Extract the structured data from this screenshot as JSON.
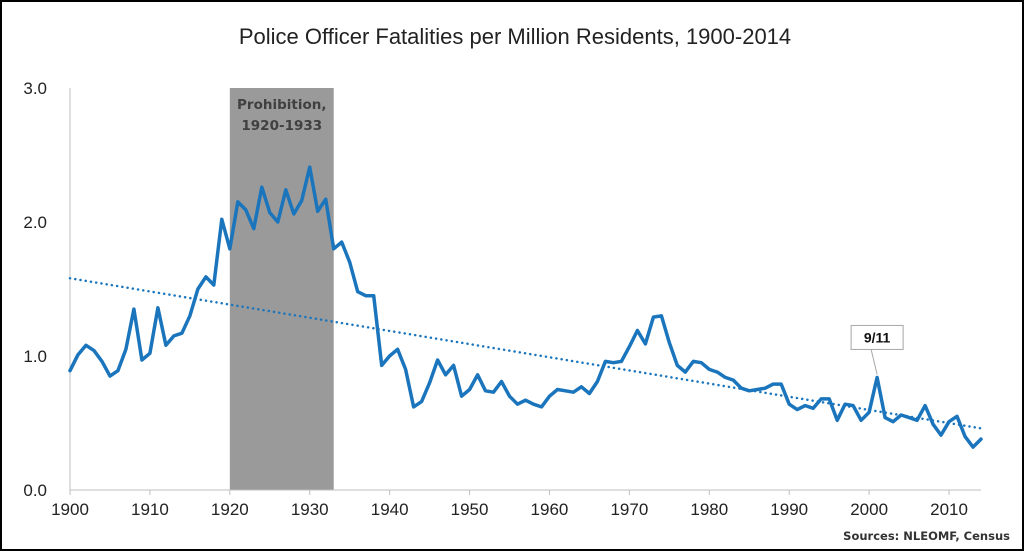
{
  "chart_data": {
    "type": "line",
    "title": "Police Officer Fatalities per Million Residents, 1900-2014",
    "xlabel": "",
    "ylabel": "",
    "xlim": [
      1900,
      2014
    ],
    "ylim": [
      0,
      3
    ],
    "x_ticks": [
      "1900",
      "1910",
      "1920",
      "1930",
      "1940",
      "1950",
      "1960",
      "1970",
      "1980",
      "1990",
      "2000",
      "2010"
    ],
    "y_ticks": [
      "0.0",
      "1.0",
      "2.0",
      "3.0"
    ],
    "grid": false,
    "legend": "none",
    "line_color": "#1B75BC",
    "band": {
      "start": 1920,
      "end": 1933,
      "label_line1": "Prohibition,",
      "label_line2": "1920-1933",
      "color": "#9A9A9A"
    },
    "trendline": {
      "x_start": 1900,
      "y_start": 1.58,
      "x_end": 2014,
      "y_end": 0.46,
      "style": "dotted"
    },
    "annotation": {
      "label": "9/11",
      "x": 2001,
      "y": 0.84
    },
    "source": "Sources: NLEOMF, Census",
    "series": [
      {
        "x": [
          1900,
          1901,
          1902,
          1903,
          1904,
          1905,
          1906,
          1907,
          1908,
          1909,
          1910,
          1911,
          1912,
          1913,
          1914,
          1915,
          1916,
          1917,
          1918,
          1919,
          1920,
          1921,
          1922,
          1923,
          1924,
          1925,
          1926,
          1927,
          1928,
          1929,
          1930,
          1931,
          1932,
          1933,
          1934,
          1935,
          1936,
          1937,
          1938,
          1939,
          1940,
          1941,
          1942,
          1943,
          1944,
          1945,
          1946,
          1947,
          1948,
          1949,
          1950,
          1951,
          1952,
          1953,
          1954,
          1955,
          1956,
          1957,
          1958,
          1959,
          1960,
          1961,
          1962,
          1963,
          1964,
          1965,
          1966,
          1967,
          1968,
          1969,
          1970,
          1971,
          1972,
          1973,
          1974,
          1975,
          1976,
          1977,
          1978,
          1979,
          1980,
          1981,
          1982,
          1983,
          1984,
          1985,
          1986,
          1987,
          1988,
          1989,
          1990,
          1991,
          1992,
          1993,
          1994,
          1995,
          1996,
          1997,
          1998,
          1999,
          2000,
          2001,
          2002,
          2003,
          2004,
          2005,
          2006,
          2007,
          2008,
          2009,
          2010,
          2011,
          2012,
          2013,
          2014
        ],
        "values": [
          0.89,
          1.01,
          1.08,
          1.04,
          0.96,
          0.85,
          0.89,
          1.05,
          1.35,
          0.97,
          1.02,
          1.36,
          1.08,
          1.15,
          1.17,
          1.3,
          1.5,
          1.59,
          1.53,
          2.02,
          1.8,
          2.15,
          2.09,
          1.95,
          2.26,
          2.07,
          2.0,
          2.24,
          2.06,
          2.16,
          2.41,
          2.08,
          2.17,
          1.8,
          1.85,
          1.7,
          1.48,
          1.45,
          1.45,
          0.93,
          1.0,
          1.05,
          0.9,
          0.62,
          0.66,
          0.8,
          0.97,
          0.86,
          0.93,
          0.7,
          0.75,
          0.86,
          0.74,
          0.73,
          0.81,
          0.7,
          0.64,
          0.67,
          0.64,
          0.62,
          0.7,
          0.75,
          0.74,
          0.73,
          0.77,
          0.72,
          0.81,
          0.96,
          0.95,
          0.96,
          1.07,
          1.19,
          1.09,
          1.29,
          1.3,
          1.1,
          0.93,
          0.88,
          0.96,
          0.95,
          0.9,
          0.88,
          0.84,
          0.82,
          0.76,
          0.74,
          0.75,
          0.76,
          0.79,
          0.79,
          0.64,
          0.6,
          0.63,
          0.61,
          0.68,
          0.68,
          0.52,
          0.64,
          0.63,
          0.52,
          0.58,
          0.84,
          0.54,
          0.51,
          0.56,
          0.54,
          0.52,
          0.63,
          0.49,
          0.41,
          0.51,
          0.55,
          0.4,
          0.32,
          0.38
        ]
      }
    ]
  }
}
